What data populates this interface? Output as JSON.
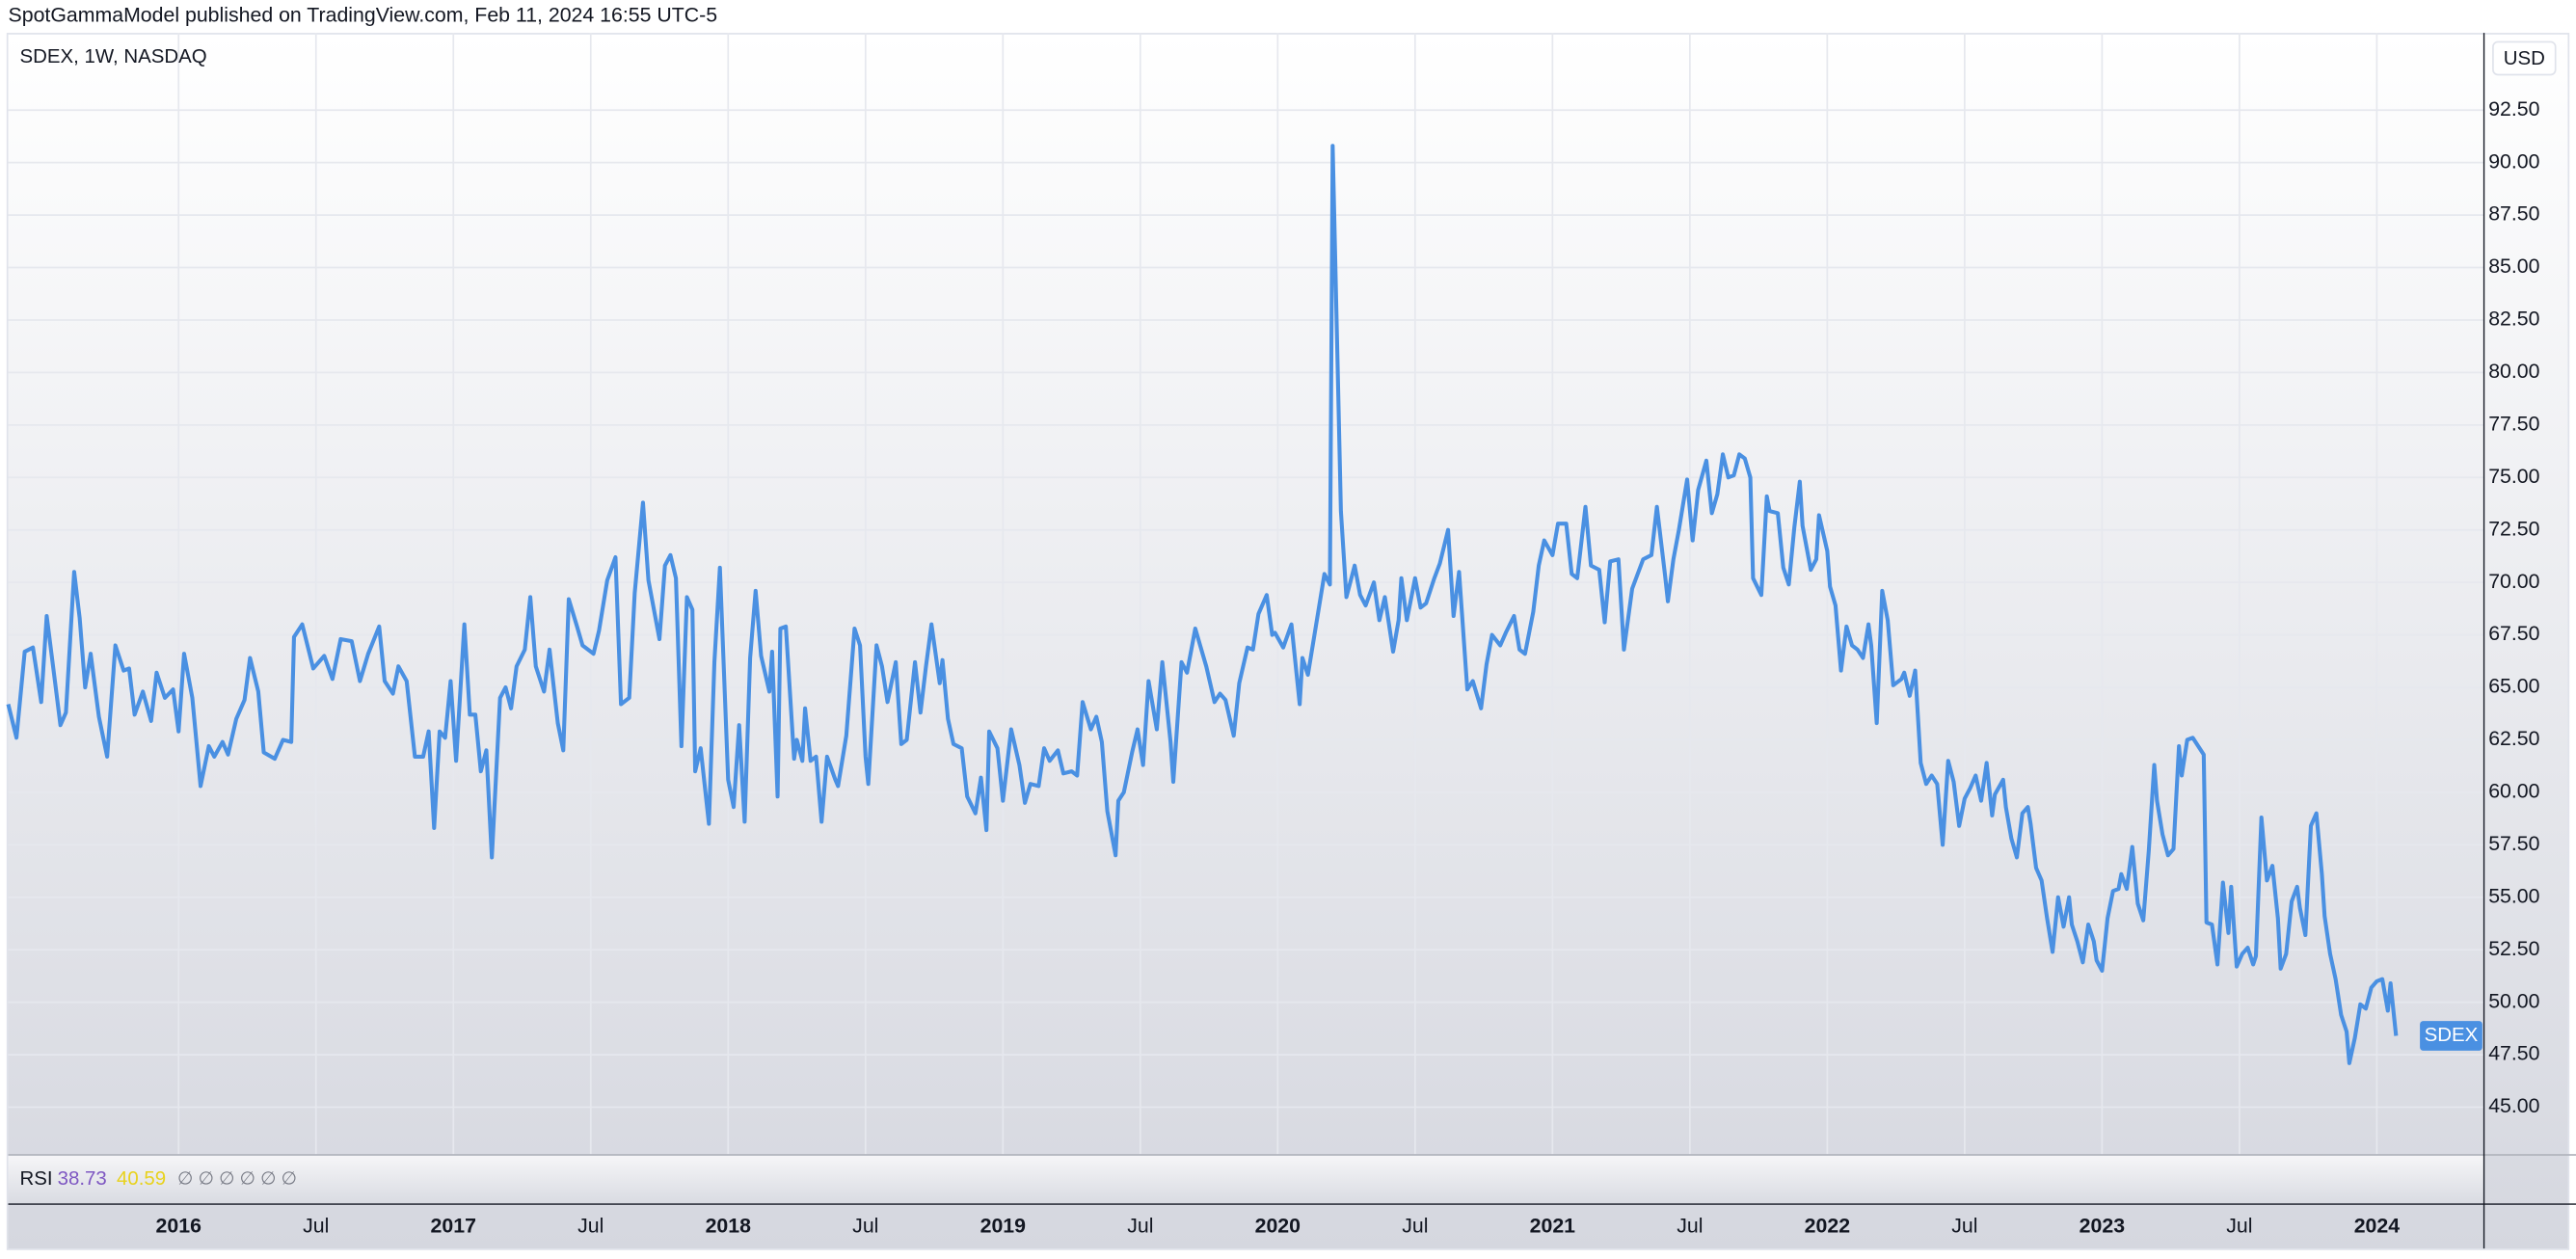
{
  "header": "SpotGammaModel published on TradingView.com, Feb 11, 2024 16:55 UTC-5",
  "currency": "USD",
  "rsi": {
    "label": "RSI",
    "values": [
      38.73,
      40.59
    ],
    "colors": [
      "#7e57c2",
      "#e8d21d"
    ],
    "placeholders": "∅ ∅ ∅ ∅ ∅ ∅"
  },
  "chart_data": {
    "type": "line",
    "title": "SDEX, 1W, NASDAQ",
    "x": [
      2015.38,
      2015.41,
      2015.44,
      2015.47,
      2015.5,
      2015.52,
      2015.55,
      2015.57,
      2015.59,
      2015.62,
      2015.64,
      2015.66,
      2015.68,
      2015.71,
      2015.74,
      2015.77,
      2015.8,
      2015.82,
      2015.84,
      2015.87,
      2015.9,
      2015.92,
      2015.95,
      2015.98,
      2016,
      2016.02,
      2016.05,
      2016.08,
      2016.11,
      2016.13,
      2016.16,
      2016.18,
      2016.21,
      2016.24,
      2016.26,
      2016.29,
      2016.31,
      2016.35,
      2016.38,
      2016.41,
      2016.42,
      2016.45,
      2016.49,
      2016.53,
      2016.56,
      2016.59,
      2016.63,
      2016.66,
      2016.69,
      2016.73,
      2016.75,
      2016.78,
      2016.8,
      2016.83,
      2016.86,
      2016.89,
      2016.91,
      2016.93,
      2016.95,
      2016.97,
      2016.99,
      2017.01,
      2017.04,
      2017.06,
      2017.08,
      2017.1,
      2017.12,
      2017.14,
      2017.17,
      2017.19,
      2017.21,
      2017.23,
      2017.26,
      2017.28,
      2017.3,
      2017.33,
      2017.35,
      2017.38,
      2017.4,
      2017.42,
      2017.45,
      2017.47,
      2017.51,
      2017.53,
      2017.56,
      2017.59,
      2017.61,
      2017.64,
      2017.66,
      2017.69,
      2017.71,
      2017.75,
      2017.77,
      2017.79,
      2017.81,
      2017.83,
      2017.85,
      2017.87,
      2017.88,
      2017.9,
      2017.93,
      2017.95,
      2017.97,
      2018,
      2018.02,
      2018.04,
      2018.06,
      2018.08,
      2018.1,
      2018.12,
      2018.15,
      2018.16,
      2018.18,
      2018.19,
      2018.21,
      2018.24,
      2018.25,
      2018.27,
      2018.28,
      2018.3,
      2018.32,
      2018.34,
      2018.36,
      2018.39,
      2018.4,
      2018.43,
      2018.46,
      2018.48,
      2018.5,
      2018.51,
      2018.54,
      2018.56,
      2018.58,
      2018.61,
      2018.63,
      2018.65,
      2018.68,
      2018.7,
      2018.72,
      2018.74,
      2018.77,
      2018.78,
      2018.8,
      2018.82,
      2018.85,
      2018.87,
      2018.9,
      2018.92,
      2018.94,
      2018.95,
      2018.98,
      2019,
      2019.03,
      2019.06,
      2019.08,
      2019.1,
      2019.13,
      2019.15,
      2019.17,
      2019.2,
      2019.22,
      2019.25,
      2019.27,
      2019.29,
      2019.32,
      2019.34,
      2019.36,
      2019.38,
      2019.41,
      2019.42,
      2019.44,
      2019.47,
      2019.49,
      2019.51,
      2019.53,
      2019.56,
      2019.58,
      2019.61,
      2019.62,
      2019.65,
      2019.67,
      2019.7,
      2019.72,
      2019.74,
      2019.77,
      2019.79,
      2019.81,
      2019.84,
      2019.86,
      2019.89,
      2019.91,
      2019.93,
      2019.96,
      2019.98,
      2019.99,
      2020.02,
      2020.05,
      2020.08,
      2020.09,
      2020.11,
      2020.14,
      2020.17,
      2020.19,
      2020.2,
      2020.23,
      2020.25,
      2020.28,
      2020.3,
      2020.32,
      2020.35,
      2020.37,
      2020.39,
      2020.42,
      2020.44,
      2020.45,
      2020.47,
      2020.5,
      2020.52,
      2020.54,
      2020.57,
      2020.59,
      2020.62,
      2020.64,
      2020.66,
      2020.69,
      2020.71,
      2020.74,
      2020.76,
      2020.78,
      2020.81,
      2020.83,
      2020.86,
      2020.88,
      2020.9,
      2020.93,
      2020.95,
      2020.97,
      2021,
      2021.02,
      2021.05,
      2021.07,
      2021.09,
      2021.12,
      2021.14,
      2021.17,
      2021.19,
      2021.21,
      2021.24,
      2021.26,
      2021.29,
      2021.31,
      2021.33,
      2021.36,
      2021.38,
      2021.41,
      2021.42,
      2021.44,
      2021.46,
      2021.49,
      2021.51,
      2021.53,
      2021.56,
      2021.58,
      2021.6,
      2021.62,
      2021.64,
      2021.66,
      2021.68,
      2021.7,
      2021.72,
      2021.73,
      2021.76,
      2021.78,
      2021.79,
      2021.82,
      2021.84,
      2021.86,
      2021.88,
      2021.9,
      2021.91,
      2021.94,
      2021.96,
      2021.97,
      2022,
      2022.01,
      2022.03,
      2022.05,
      2022.07,
      2022.09,
      2022.11,
      2022.13,
      2022.15,
      2022.16,
      2022.18,
      2022.2,
      2022.22,
      2022.24,
      2022.27,
      2022.28,
      2022.3,
      2022.32,
      2022.34,
      2022.36,
      2022.38,
      2022.4,
      2022.42,
      2022.44,
      2022.46,
      2022.48,
      2022.5,
      2022.52,
      2022.54,
      2022.56,
      2022.58,
      2022.6,
      2022.61,
      2022.64,
      2022.65,
      2022.67,
      2022.69,
      2022.71,
      2022.73,
      2022.74,
      2022.76,
      2022.78,
      2022.8,
      2022.82,
      2022.84,
      2022.86,
      2022.88,
      2022.89,
      2022.91,
      2022.93,
      2022.95,
      2022.97,
      2022.98,
      2023,
      2023.02,
      2023.04,
      2023.06,
      2023.07,
      2023.09,
      2023.11,
      2023.13,
      2023.15,
      2023.17,
      2023.19,
      2023.2,
      2023.22,
      2023.24,
      2023.26,
      2023.28,
      2023.29,
      2023.31,
      2023.33,
      2023.35,
      2023.37,
      2023.38,
      2023.4,
      2023.42,
      2023.44,
      2023.46,
      2023.47,
      2023.49,
      2023.51,
      2023.53,
      2023.55,
      2023.56,
      2023.58,
      2023.6,
      2023.62,
      2023.64,
      2023.65,
      2023.67,
      2023.69,
      2023.71,
      2023.72,
      2023.74,
      2023.76,
      2023.78,
      2023.8,
      2023.81,
      2023.83,
      2023.85,
      2023.87,
      2023.89,
      2023.9,
      2023.92,
      2023.94,
      2023.96,
      2023.98,
      2024,
      2024.02,
      2024.04,
      2024.05,
      2024.07
    ],
    "series": [
      {
        "name": "SDEX",
        "color": "#4a90e2",
        "values": [
          64.2,
          62.6,
          66.7,
          66.9,
          64.3,
          68.4,
          65.3,
          63.2,
          63.8,
          70.5,
          68.3,
          65,
          66.6,
          63.6,
          61.7,
          67,
          65.8,
          65.9,
          63.7,
          64.8,
          63.4,
          65.7,
          64.5,
          64.9,
          62.9,
          66.6,
          64.5,
          60.3,
          62.2,
          61.7,
          62.4,
          61.8,
          63.5,
          64.4,
          66.4,
          64.8,
          61.9,
          61.6,
          62.5,
          62.4,
          67.4,
          68,
          65.9,
          66.5,
          65.4,
          67.3,
          67.2,
          65.3,
          66.6,
          67.9,
          65.3,
          64.7,
          66,
          65.3,
          61.7,
          61.7,
          62.9,
          58.3,
          62.9,
          62.6,
          65.3,
          61.5,
          68,
          63.7,
          63.7,
          61,
          62,
          56.9,
          64.5,
          65,
          64,
          66,
          66.8,
          69.3,
          66,
          64.8,
          66.8,
          63.3,
          62,
          69.2,
          67.9,
          67,
          66.6,
          67.7,
          70.1,
          71.2,
          64.2,
          64.5,
          69.5,
          73.8,
          70.1,
          67.3,
          70.8,
          71.3,
          70.2,
          62.2,
          69.3,
          68.7,
          61,
          62.1,
          58.5,
          66.2,
          70.7,
          60.6,
          59.3,
          63.2,
          58.6,
          66.4,
          69.6,
          66.5,
          64.8,
          66.7,
          59.8,
          67.8,
          67.9,
          61.6,
          62.5,
          61.5,
          64,
          61.5,
          61.7,
          58.6,
          61.7,
          60.6,
          60.3,
          62.7,
          67.8,
          67,
          61.7,
          60.4,
          67,
          66,
          64.3,
          66.2,
          62.3,
          62.5,
          66.2,
          63.8,
          66,
          68,
          65.2,
          66.3,
          63.5,
          62.3,
          62.1,
          59.8,
          59,
          60.7,
          58.2,
          62.9,
          62.1,
          59.6,
          63,
          61.3,
          59.5,
          60.4,
          60.3,
          62.1,
          61.5,
          62,
          60.9,
          61,
          60.8,
          64.3,
          63,
          63.6,
          62.4,
          59.1,
          57,
          59.6,
          60,
          61.9,
          63,
          61.3,
          65.3,
          63,
          66.2,
          62.4,
          60.5,
          66.2,
          65.7,
          67.8,
          66.9,
          66,
          64.3,
          64.7,
          64.4,
          62.7,
          65.2,
          66.9,
          66.8,
          68.5,
          69.4,
          67.5,
          67.6,
          66.9,
          68,
          64.2,
          66.4,
          65.6,
          68,
          70.4,
          69.9,
          90.8,
          73.4,
          69.3,
          70.8,
          69.4,
          68.9,
          70,
          68.2,
          69.3,
          66.7,
          68.2,
          70.2,
          68.2,
          70.2,
          68.8,
          69,
          70.2,
          70.9,
          72.5,
          68.4,
          70.5,
          64.9,
          65.3,
          64,
          66.1,
          67.5,
          67,
          67.6,
          68.4,
          66.8,
          66.6,
          68.6,
          70.8,
          72,
          71.3,
          72.8,
          72.8,
          70.4,
          70.2,
          73.6,
          70.8,
          70.6,
          68.1,
          71,
          71.1,
          66.8,
          69.7,
          70.4,
          71.1,
          71.3,
          73.6,
          70.3,
          69.1,
          71.1,
          72.5,
          74.9,
          72,
          74.4,
          75.8,
          73.3,
          74.2,
          76.1,
          75,
          75.1,
          76.1,
          75.9,
          75,
          70.2,
          69.4,
          74.1,
          73.4,
          73.3,
          70.7,
          69.9,
          72.6,
          74.8,
          72.7,
          70.6,
          71.1,
          73.2,
          71.5,
          69.8,
          68.9,
          65.8,
          67.9,
          67,
          66.8,
          66.4,
          68,
          67,
          63.3,
          69.6,
          68.2,
          65.1,
          65.4,
          65.7,
          64.6,
          65.8,
          61.4,
          60.4,
          60.8,
          60.4,
          57.5,
          61.5,
          60.5,
          58.4,
          59.7,
          60.2,
          60.8,
          59.6,
          61.4,
          58.9,
          59.9,
          60.6,
          59.3,
          57.8,
          56.9,
          59,
          59.3,
          58.5,
          56.4,
          55.8,
          54,
          52.4,
          55,
          53.6,
          55,
          53.7,
          52.9,
          51.9,
          53.7,
          52.9,
          52,
          51.5,
          54,
          55.3,
          55.4,
          56.1,
          55.4,
          57.4,
          54.7,
          53.9,
          57.2,
          61.3,
          59.6,
          58,
          57,
          57.3,
          62.2,
          60.8,
          62.5,
          62.6,
          62.2,
          61.8,
          53.8,
          53.7,
          51.8,
          55.7,
          53.3,
          55.5,
          51.7,
          52.3,
          52.6,
          51.8,
          52.2,
          58.8,
          55.8,
          56.5,
          54,
          51.6,
          52.3,
          54.8,
          55.5,
          54.5,
          53.2,
          58.4,
          59,
          56.1,
          54.1,
          52.3,
          51.1,
          49.4,
          48.6,
          47.1,
          48.3,
          49.9,
          49.7,
          50.7,
          51,
          51.1,
          49.6,
          50.9,
          48.4
        ]
      }
    ],
    "xlim": [
      2015.38,
      2024.39
    ],
    "xticks": [
      2016,
      {
        "value": 2016.5,
        "label": "Jul"
      },
      2017,
      {
        "value": 2017.5,
        "label": "Jul"
      },
      2018,
      {
        "value": 2018.5,
        "label": "Jul"
      },
      2019,
      {
        "value": 2019.5,
        "label": "Jul"
      },
      2020,
      {
        "value": 2020.5,
        "label": "Jul"
      },
      2021,
      {
        "value": 2021.5,
        "label": "Jul"
      },
      2022,
      {
        "value": 2022.5,
        "label": "Jul"
      },
      2023,
      {
        "value": 2023.5,
        "label": "Jul"
      },
      2024
    ],
    "ylim": [
      42.73,
      96.18
    ],
    "yticks": [
      {
        "value": 45,
        "label": "45.00"
      },
      {
        "value": 47.5,
        "label": "47.50"
      },
      {
        "value": 50,
        "label": "50.00"
      },
      {
        "value": 52.5,
        "label": "52.50"
      },
      {
        "value": 55,
        "label": "55.00"
      },
      {
        "value": 57.5,
        "label": "57.50"
      },
      {
        "value": 60,
        "label": "60.00"
      },
      {
        "value": 62.5,
        "label": "62.50"
      },
      {
        "value": 65,
        "label": "65.00"
      },
      {
        "value": 67.5,
        "label": "67.50"
      },
      {
        "value": 70,
        "label": "70.00"
      },
      {
        "value": 72.5,
        "label": "72.50"
      },
      {
        "value": 75,
        "label": "75.00"
      },
      {
        "value": 77.5,
        "label": "77.50"
      },
      {
        "value": 80,
        "label": "80.00"
      },
      {
        "value": 82.5,
        "label": "82.50"
      },
      {
        "value": 85,
        "label": "85.00"
      },
      {
        "value": 87.5,
        "label": "87.50"
      },
      {
        "value": 90,
        "label": "90.00"
      },
      {
        "value": 92.5,
        "label": "92.50"
      }
    ],
    "grid": true
  }
}
